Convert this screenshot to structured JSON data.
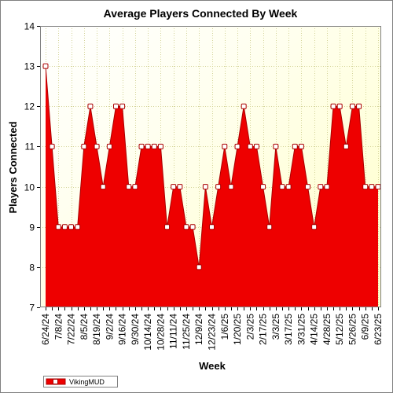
{
  "chart_data": {
    "type": "area",
    "title": "Average Players Connected By Week",
    "xlabel": "Week",
    "ylabel": "Players Connected",
    "ylim": [
      7,
      14
    ],
    "yticks": [
      7,
      8,
      9,
      10,
      11,
      12,
      13,
      14
    ],
    "grid": true,
    "legend_position": "bottom-left",
    "colors": {
      "fill": "#ee0000",
      "line": "#aa0000",
      "marker_fill": "#ffffff",
      "background": "#ffffd8",
      "grid": "#d4d49a"
    },
    "x": [
      "6/24/24",
      "7/1/24",
      "7/8/24",
      "7/15/24",
      "7/22/24",
      "7/29/24",
      "8/5/24",
      "8/12/24",
      "8/19/24",
      "8/26/24",
      "9/2/24",
      "9/9/24",
      "9/16/24",
      "9/23/24",
      "9/30/24",
      "10/7/24",
      "10/14/24",
      "10/21/24",
      "10/28/24",
      "11/4/24",
      "11/11/24",
      "11/18/24",
      "11/25/24",
      "12/2/24",
      "12/9/24",
      "12/16/24",
      "12/23/24",
      "12/30/24",
      "1/6/25",
      "1/13/25",
      "1/20/25",
      "1/27/25",
      "2/3/25",
      "2/10/25",
      "2/17/25",
      "2/24/25",
      "3/3/25",
      "3/10/25",
      "3/17/25",
      "3/24/25",
      "3/31/25",
      "4/7/25",
      "4/14/25",
      "4/21/25",
      "4/28/25",
      "5/5/25",
      "5/12/25",
      "5/19/25",
      "5/26/25",
      "6/2/25",
      "6/9/25",
      "6/16/25",
      "6/23/25"
    ],
    "x_tick_labels": [
      "6/24/24",
      "7/8/24",
      "7/22/24",
      "8/5/24",
      "8/19/24",
      "9/2/24",
      "9/16/24",
      "9/30/24",
      "10/14/24",
      "10/28/24",
      "11/11/24",
      "11/25/24",
      "12/9/24",
      "12/23/24",
      "1/6/25",
      "1/20/25",
      "2/3/25",
      "2/17/25",
      "3/3/25",
      "3/17/25",
      "3/31/25",
      "4/14/25",
      "4/28/25",
      "5/12/25",
      "5/26/25",
      "6/9/25",
      "6/23/25"
    ],
    "series": [
      {
        "name": "VikingMUD",
        "values": [
          13,
          11,
          9,
          9,
          9,
          9,
          11,
          12,
          11,
          10,
          11,
          12,
          12,
          10,
          10,
          11,
          11,
          11,
          11,
          9,
          10,
          10,
          9,
          9,
          8,
          10,
          9,
          10,
          11,
          10,
          11,
          12,
          11,
          11,
          10,
          9,
          11,
          10,
          10,
          11,
          11,
          10,
          9,
          10,
          10,
          12,
          12,
          11,
          12,
          12,
          10,
          10,
          10
        ]
      }
    ]
  }
}
